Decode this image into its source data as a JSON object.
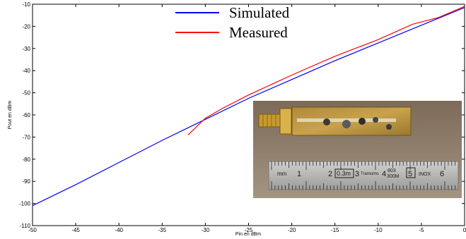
{
  "chart_data": {
    "type": "line",
    "title": "",
    "xlabel": "Pin en dBm",
    "ylabel": "Pout en dBm",
    "xlim": [
      -50,
      0
    ],
    "ylim": [
      -110,
      -10
    ],
    "x_ticks": [
      -50,
      -45,
      -40,
      -35,
      -30,
      -25,
      -20,
      -15,
      -10,
      -5,
      0
    ],
    "y_ticks": [
      -110,
      -100,
      -90,
      -80,
      -70,
      -60,
      -50,
      -40,
      -30,
      -20,
      -10
    ],
    "grid": false,
    "legend_position": "top-center",
    "series": [
      {
        "name": "Simulated",
        "color": "#0000ff",
        "x": [
          -50,
          -45,
          -40,
          -35,
          -30,
          -25,
          -20,
          -15,
          -10,
          -5,
          0
        ],
        "y": [
          -101,
          -91.5,
          -81.5,
          -71.5,
          -62,
          -52.5,
          -44,
          -35.5,
          -27.5,
          -19.5,
          -11.5
        ]
      },
      {
        "name": "Measured",
        "color": "#ff0000",
        "x": [
          -32,
          -30,
          -28,
          -25,
          -20,
          -15,
          -10,
          -6,
          -3,
          0
        ],
        "y": [
          -69,
          -61.5,
          -57,
          -51,
          -42,
          -33.5,
          -26,
          -19,
          -16,
          -11
        ]
      }
    ],
    "inset_photo": {
      "ruler_labels": [
        "mm",
        "1",
        "2",
        "0.3m",
        "3",
        "4",
        "5",
        "6"
      ],
      "ruler_text": [
        "Tramomo",
        "803",
        "300M",
        "INOX"
      ]
    }
  }
}
